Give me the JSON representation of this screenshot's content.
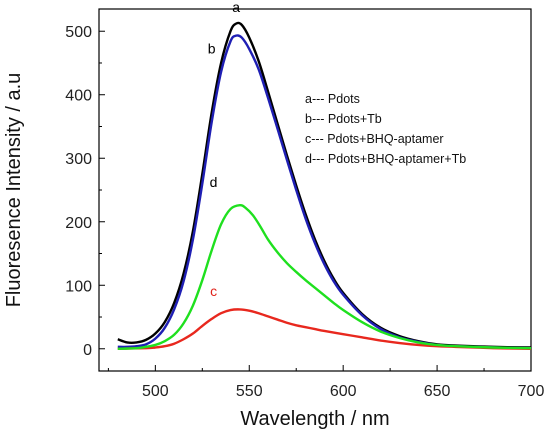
{
  "chart_data": {
    "type": "line",
    "xlabel": "Wavelength / nm",
    "ylabel": "Fluoresence Intensity / a.u",
    "xlim": [
      470,
      700
    ],
    "ylim": [
      -35,
      535
    ],
    "xticks": [
      500,
      550,
      600,
      650,
      700
    ],
    "yticks": [
      0,
      100,
      200,
      300,
      400,
      500
    ],
    "legend": {
      "placement": "top-right",
      "entries": [
        "a--- Pdots",
        "b--- Pdots+Tb",
        "c--- Pdots+BHQ-aptamer",
        "d--- Pdots+BHQ-aptamer+Tb"
      ]
    },
    "series": [
      {
        "key": "a",
        "color": "#000000",
        "label_color": "#000000",
        "label_at": [
          543,
          530
        ],
        "points": [
          [
            480,
            15
          ],
          [
            485,
            10
          ],
          [
            490,
            10
          ],
          [
            495,
            14
          ],
          [
            500,
            24
          ],
          [
            505,
            42
          ],
          [
            510,
            72
          ],
          [
            515,
            118
          ],
          [
            520,
            185
          ],
          [
            525,
            275
          ],
          [
            530,
            372
          ],
          [
            535,
            450
          ],
          [
            540,
            500
          ],
          [
            543,
            512
          ],
          [
            546,
            510
          ],
          [
            550,
            490
          ],
          [
            555,
            453
          ],
          [
            560,
            405
          ],
          [
            565,
            355
          ],
          [
            570,
            305
          ],
          [
            575,
            257
          ],
          [
            580,
            212
          ],
          [
            585,
            172
          ],
          [
            590,
            138
          ],
          [
            595,
            110
          ],
          [
            600,
            88
          ],
          [
            610,
            55
          ],
          [
            620,
            33
          ],
          [
            630,
            20
          ],
          [
            640,
            12
          ],
          [
            650,
            7
          ],
          [
            660,
            5
          ],
          [
            680,
            3
          ],
          [
            700,
            2
          ]
        ]
      },
      {
        "key": "b",
        "color": "#1f1fb4",
        "label_color": "#000000",
        "label_at": [
          530,
          465
        ],
        "points": [
          [
            480,
            3
          ],
          [
            485,
            3
          ],
          [
            490,
            4
          ],
          [
            495,
            7
          ],
          [
            500,
            16
          ],
          [
            505,
            33
          ],
          [
            510,
            62
          ],
          [
            515,
            106
          ],
          [
            520,
            172
          ],
          [
            525,
            260
          ],
          [
            530,
            357
          ],
          [
            535,
            436
          ],
          [
            540,
            484
          ],
          [
            543,
            493
          ],
          [
            546,
            490
          ],
          [
            550,
            472
          ],
          [
            555,
            440
          ],
          [
            560,
            395
          ],
          [
            565,
            347
          ],
          [
            570,
            298
          ],
          [
            575,
            250
          ],
          [
            580,
            205
          ],
          [
            585,
            166
          ],
          [
            590,
            133
          ],
          [
            595,
            106
          ],
          [
            600,
            85
          ],
          [
            610,
            53
          ],
          [
            620,
            31
          ],
          [
            630,
            18
          ],
          [
            640,
            11
          ],
          [
            650,
            6
          ],
          [
            660,
            4
          ],
          [
            680,
            2
          ],
          [
            700,
            1
          ]
        ]
      },
      {
        "key": "c",
        "color": "#e8281e",
        "label_color": "#e0231b",
        "label_at": [
          531,
          83
        ],
        "points": [
          [
            480,
            0
          ],
          [
            495,
            1
          ],
          [
            500,
            2
          ],
          [
            505,
            4
          ],
          [
            510,
            8
          ],
          [
            515,
            15
          ],
          [
            520,
            24
          ],
          [
            525,
            36
          ],
          [
            530,
            47
          ],
          [
            535,
            56
          ],
          [
            540,
            61
          ],
          [
            545,
            62
          ],
          [
            550,
            60
          ],
          [
            555,
            56
          ],
          [
            560,
            51
          ],
          [
            565,
            46
          ],
          [
            570,
            41
          ],
          [
            575,
            37
          ],
          [
            580,
            34
          ],
          [
            585,
            31
          ],
          [
            590,
            28
          ],
          [
            600,
            23
          ],
          [
            610,
            18
          ],
          [
            620,
            13
          ],
          [
            630,
            9
          ],
          [
            640,
            6
          ],
          [
            650,
            4
          ],
          [
            660,
            3
          ],
          [
            680,
            1
          ],
          [
            700,
            0
          ]
        ]
      },
      {
        "key": "d",
        "color": "#1fe01f",
        "label_color": "#000000",
        "label_at": [
          531,
          255
        ],
        "points": [
          [
            480,
            0
          ],
          [
            490,
            1
          ],
          [
            495,
            3
          ],
          [
            500,
            6
          ],
          [
            505,
            12
          ],
          [
            510,
            22
          ],
          [
            515,
            40
          ],
          [
            520,
            68
          ],
          [
            525,
            108
          ],
          [
            530,
            155
          ],
          [
            535,
            196
          ],
          [
            540,
            220
          ],
          [
            545,
            226
          ],
          [
            548,
            222
          ],
          [
            552,
            210
          ],
          [
            556,
            192
          ],
          [
            560,
            172
          ],
          [
            565,
            152
          ],
          [
            570,
            135
          ],
          [
            575,
            121
          ],
          [
            580,
            108
          ],
          [
            585,
            96
          ],
          [
            590,
            84
          ],
          [
            595,
            72
          ],
          [
            600,
            61
          ],
          [
            610,
            42
          ],
          [
            620,
            27
          ],
          [
            630,
            17
          ],
          [
            640,
            10
          ],
          [
            650,
            6
          ],
          [
            660,
            4
          ],
          [
            680,
            2
          ],
          [
            700,
            1
          ]
        ]
      }
    ]
  }
}
